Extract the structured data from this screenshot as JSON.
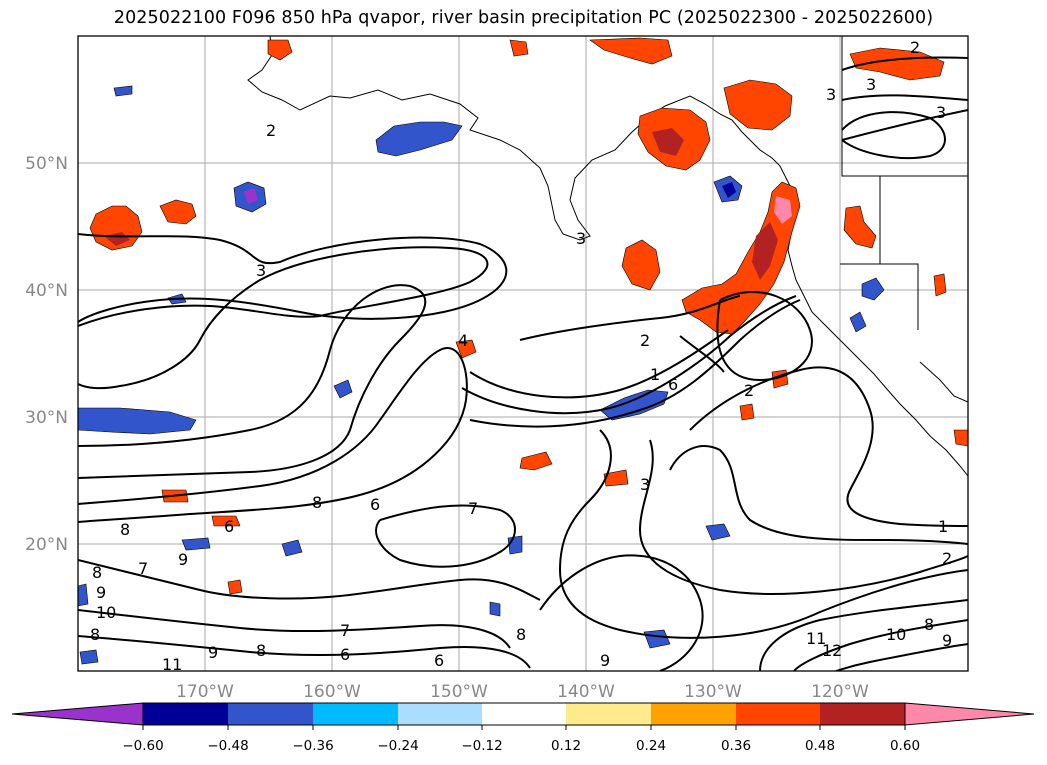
{
  "title": "2025022100 F096 850 hPa qvapor, river basin precipitation PC (2025022300 - 2025022600)",
  "latitude_labels": [
    "50°N",
    "40°N",
    "30°N",
    "20°N"
  ],
  "longitude_labels": [
    "170°W",
    "160°W",
    "150°W",
    "140°W",
    "130°W",
    "120°W"
  ],
  "contour_labels": [
    "2",
    "3",
    "3",
    "2",
    "3",
    "3",
    "3",
    "4",
    "2",
    "1",
    "6",
    "2",
    "3",
    "1",
    "2",
    "8",
    "6",
    "7",
    "8",
    "9",
    "6",
    "8",
    "9",
    "10",
    "7",
    "8",
    "6",
    "9",
    "6",
    "7",
    "8",
    "8",
    "9",
    "10",
    "8",
    "9",
    "11",
    "12",
    "11"
  ],
  "colorbar": {
    "colors": [
      "#9933cc",
      "#000099",
      "#3355cc",
      "#00bbff",
      "#aaddff",
      "#ffffff",
      "#ffeb8c",
      "#ffa200",
      "#ff4500",
      "#b22222",
      "#ff88aa"
    ],
    "tick_labels": [
      "−0.60",
      "−0.48",
      "−0.36",
      "−0.24",
      "−0.12",
      "0.12",
      "0.24",
      "0.36",
      "0.48",
      "0.60"
    ]
  }
}
